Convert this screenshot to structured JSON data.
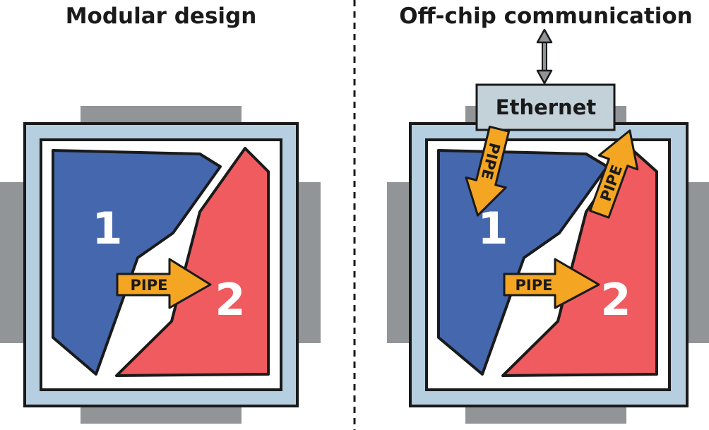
{
  "panels": {
    "left": {
      "title": "Modular design",
      "module_1": "1",
      "module_2": "2",
      "pipe": "PIPE"
    },
    "right": {
      "title": "Off-chip communication",
      "module_1": "1",
      "module_2": "2",
      "pipe_main": "PIPE",
      "pipe_in": "PIPE",
      "pipe_out": "PIPE",
      "ethernet": "Ethernet"
    }
  },
  "colors": {
    "module_1": "#4567ad",
    "module_2": "#ef5b5f",
    "pipe_arrow": "#f4a521",
    "chip_frame": "#b5cfe0",
    "ethernet_box": "#c3d1d9",
    "pins": "#929597",
    "outline": "#1a1a1a"
  }
}
